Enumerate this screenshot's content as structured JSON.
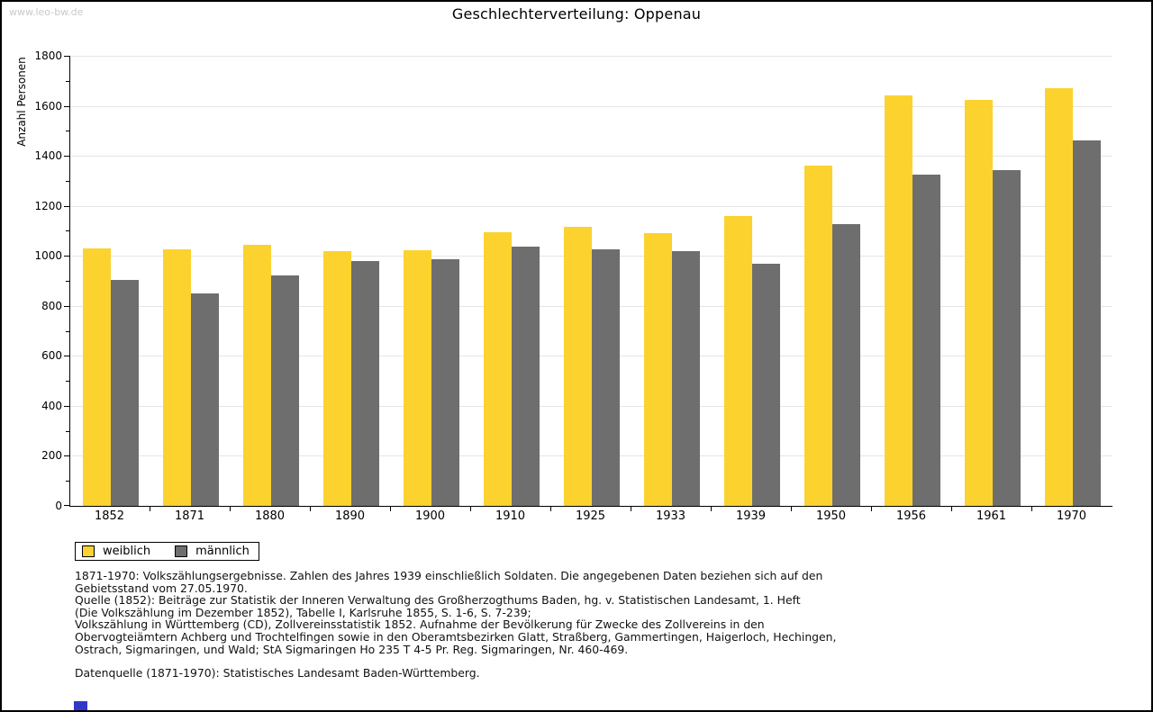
{
  "page": {
    "watermark": "www.leo-bw.de",
    "title": "Geschlechterverteilung: Oppenau"
  },
  "chart_data": {
    "type": "bar",
    "title": "Geschlechterverteilung: Oppenau",
    "xlabel": "",
    "ylabel": "Anzahl Personen",
    "ylim": [
      0,
      1800
    ],
    "ytick_step": 200,
    "ytick_minor_step": 100,
    "grid": true,
    "legend_position": "bottom-left",
    "categories": [
      "1852",
      "1871",
      "1880",
      "1890",
      "1900",
      "1910",
      "1925",
      "1933",
      "1939",
      "1950",
      "1956",
      "1961",
      "1970"
    ],
    "series": [
      {
        "name": "weiblich",
        "color": "#fcd22f",
        "values": [
          1030,
          1025,
          1043,
          1018,
          1021,
          1095,
          1115,
          1089,
          1160,
          1360,
          1640,
          1625,
          1672
        ]
      },
      {
        "name": "männlich",
        "color": "#6e6e6e",
        "values": [
          903,
          850,
          920,
          978,
          986,
          1035,
          1025,
          1018,
          967,
          1128,
          1325,
          1341,
          1462
        ]
      }
    ]
  },
  "footer": {
    "lines": [
      "1871-1970: Volkszählungsergebnisse. Zahlen des Jahres 1939 einschließlich Soldaten. Die angegebenen Daten beziehen sich auf den",
      "Gebietsstand vom 27.05.1970.",
      "Quelle (1852): Beiträge zur Statistik der Inneren Verwaltung des Großherzogthums Baden, hg. v. Statistischen Landesamt, 1. Heft",
      "(Die Volkszählung im Dezember 1852), Tabelle I, Karlsruhe 1855, S. 1-6, S. 7-239;",
      "Volkszählung in Württemberg (CD), Zollvereinsstatistik 1852. Aufnahme der Bevölkerung für Zwecke des Zollvereins in den",
      "Obervogteiämtern Achberg und Trochtelfingen sowie in den Oberamtsbezirken Glatt, Straßberg, Gammertingen, Haigerloch, Hechingen,",
      "Ostrach, Sigmaringen, und Wald; StA Sigmaringen Ho 235 T 4-5 Pr. Reg. Sigmaringen, Nr. 460-469."
    ],
    "datenquelle": "Datenquelle (1871-1970): Statistisches Landesamt Baden-Württemberg."
  },
  "colors": {
    "weiblich": "#fcd22f",
    "männlich": "#6e6e6e",
    "gridline": "#e5e5e5",
    "axis": "#000000",
    "watermark": "#c9c9c9",
    "blue_marker": "#3237c8"
  }
}
